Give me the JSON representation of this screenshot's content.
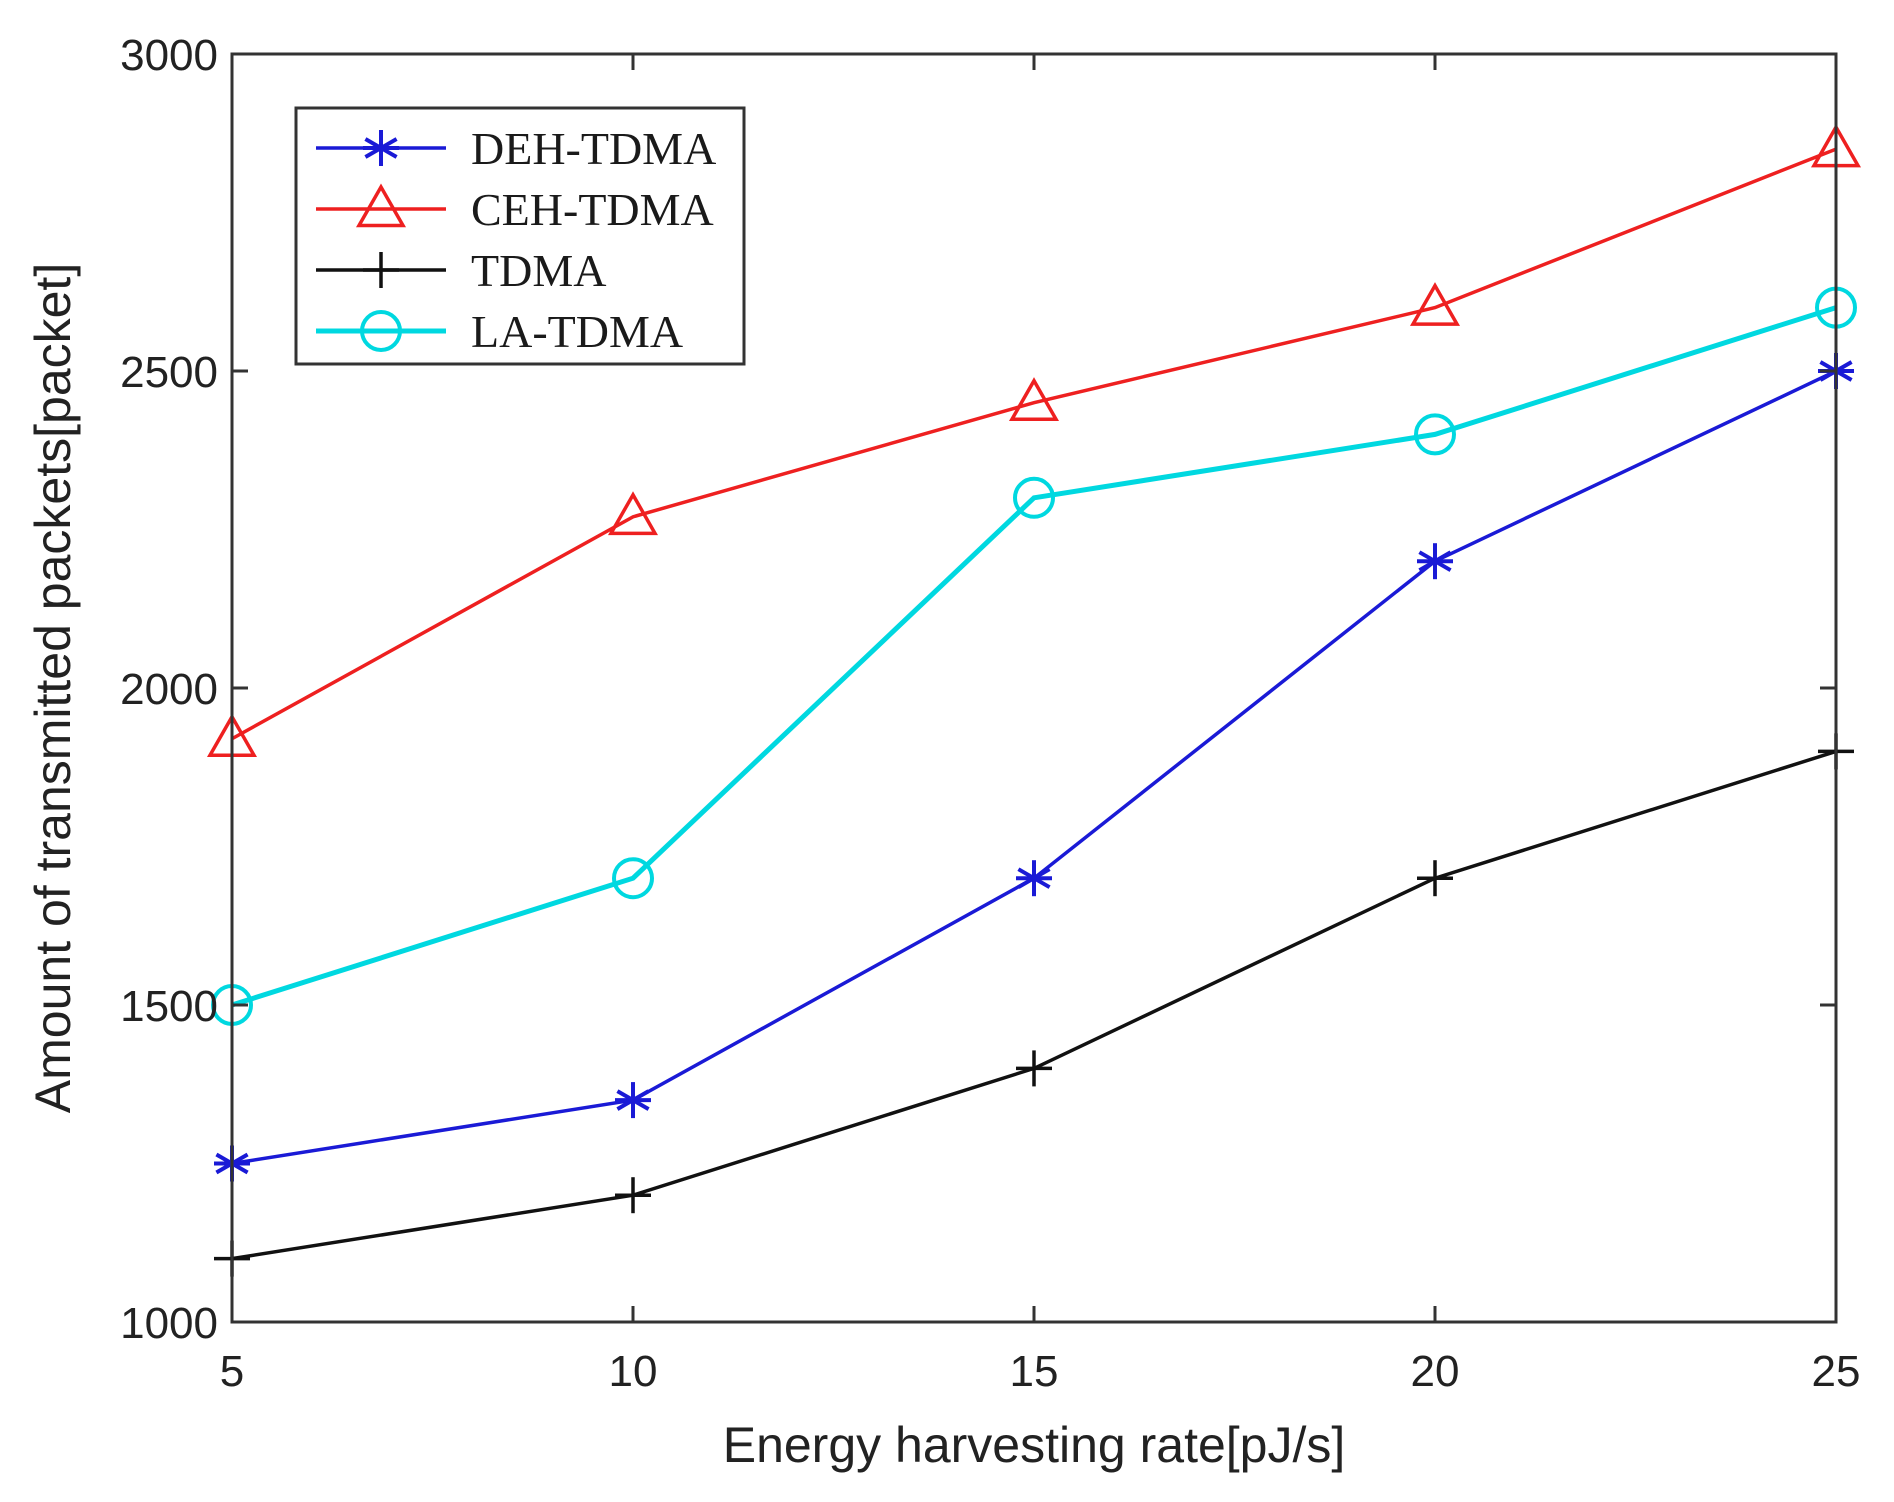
{
  "chart_data": {
    "type": "line",
    "title": "",
    "xlabel": "Energy harvesting rate[pJ/s]",
    "ylabel": "Amount of transmitted packets[packet]",
    "x": [
      5,
      10,
      15,
      20,
      25
    ],
    "xlim": [
      5,
      25
    ],
    "ylim": [
      1000,
      3000
    ],
    "xticks": [
      5,
      10,
      15,
      20,
      25
    ],
    "yticks": [
      1000,
      1500,
      2000,
      2500,
      3000
    ],
    "grid": false,
    "legend_position": "top-left",
    "series": [
      {
        "name": "DEH-TDMA",
        "color": "#1a1ad6",
        "marker": "asterisk",
        "values": [
          1250,
          1350,
          1700,
          2200,
          2500
        ]
      },
      {
        "name": "CEH-TDMA",
        "color": "#ee2020",
        "marker": "triangle",
        "values": [
          1920,
          2270,
          2450,
          2600,
          2850
        ]
      },
      {
        "name": "TDMA",
        "color": "#111111",
        "marker": "plus",
        "values": [
          1100,
          1200,
          1400,
          1700,
          1900
        ]
      },
      {
        "name": "LA-TDMA",
        "color": "#00d8e0",
        "marker": "circle",
        "values": [
          1500,
          1700,
          2300,
          2400,
          2600
        ]
      }
    ]
  }
}
